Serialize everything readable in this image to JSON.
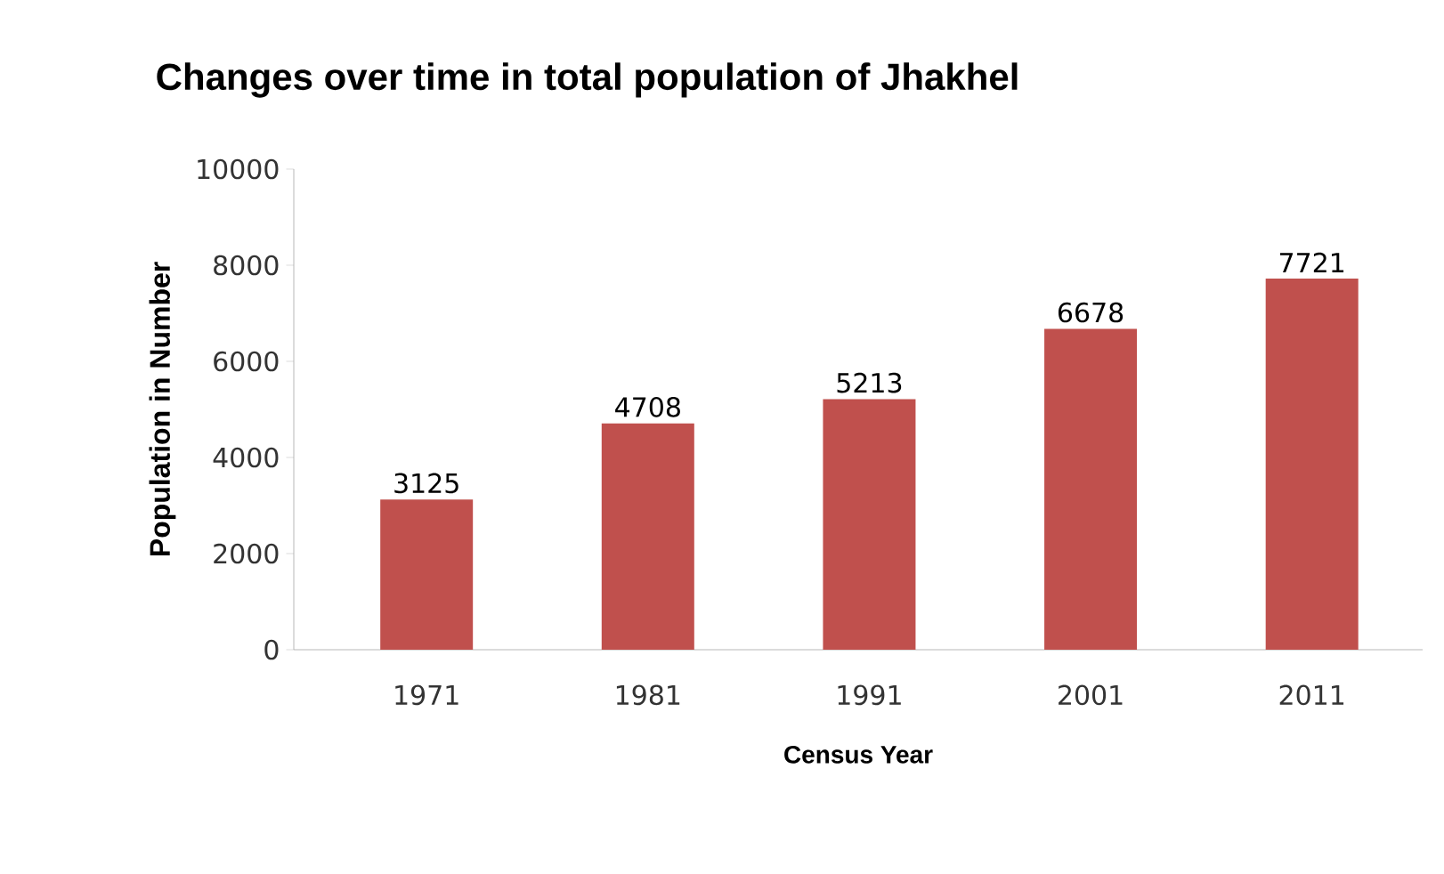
{
  "chart_data": {
    "type": "bar",
    "title": "Changes over time in total population  of Jhakhel",
    "xlabel": "Census Year",
    "ylabel": "Population in Number",
    "categories": [
      "1971",
      "1981",
      "1991",
      "2001",
      "2011"
    ],
    "values": [
      3125,
      4708,
      5213,
      6678,
      7721
    ],
    "color": "#c0504d",
    "ylim": [
      0,
      10000
    ],
    "yticks": [
      0,
      2000,
      4000,
      6000,
      8000,
      10000
    ],
    "data_labels": true,
    "grid": false
  }
}
